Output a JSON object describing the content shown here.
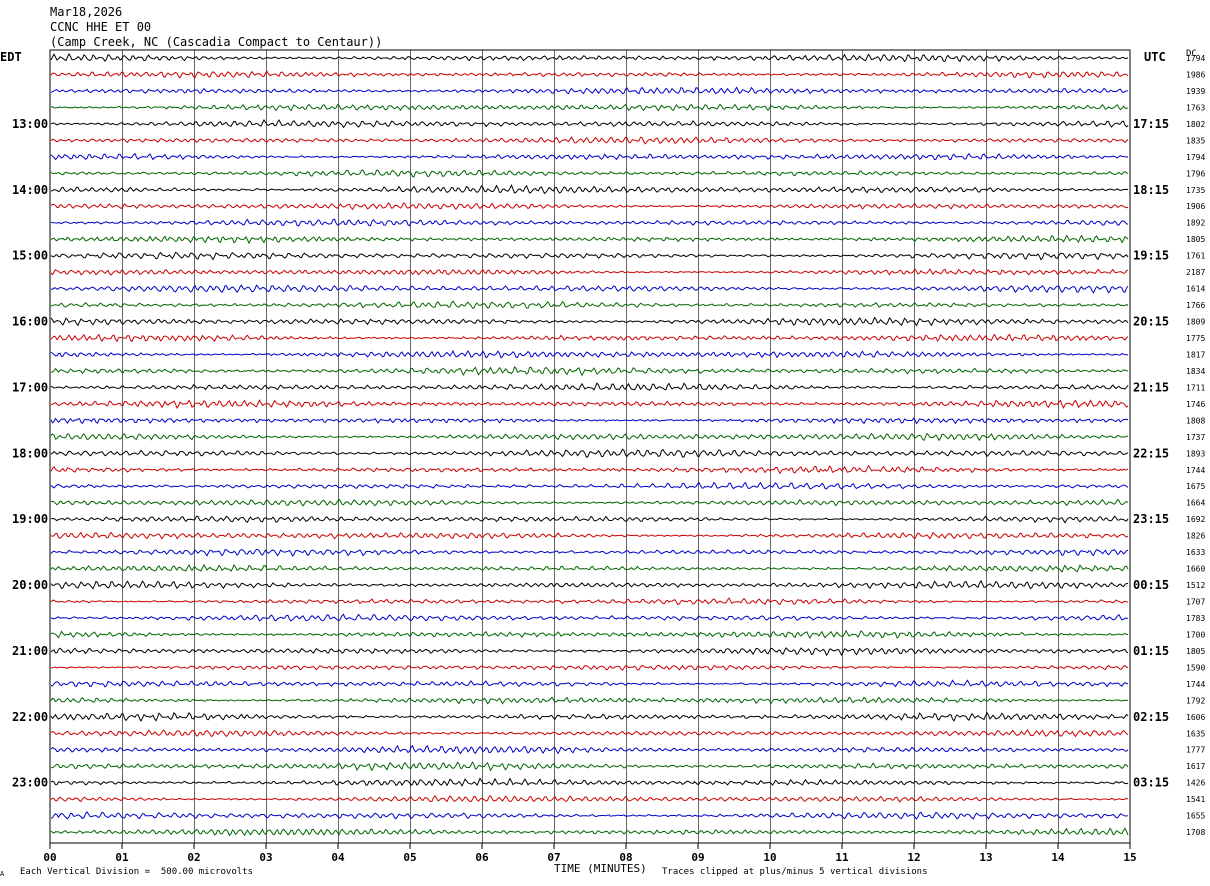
{
  "header": {
    "date": "Mar18,2026",
    "channel": "CCNC HHE ET 00",
    "station": "(Camp Creek, NC (Cascadia Compact to Centaur))"
  },
  "left_axis_label": "EDT",
  "right_axis_label": "UTC",
  "dc_label": "DC",
  "footer": {
    "vertical_division": "Each Vertical Division =  500.00 microvolts",
    "time_label": "TIME (MINUTES)",
    "clip_note": "Traces clipped at plus/minus 5 vertical divisions",
    "corner_mark": "A"
  },
  "colors": {
    "black": "#000000",
    "red": "#cc0000",
    "blue": "#0000cc",
    "green": "#006600",
    "grid": "#000000"
  },
  "chart_data": {
    "type": "line",
    "x_ticks": [
      "00",
      "01",
      "02",
      "03",
      "04",
      "05",
      "06",
      "07",
      "08",
      "09",
      "10",
      "11",
      "12",
      "13",
      "14",
      "15"
    ],
    "xlim": [
      0,
      15
    ],
    "trace_colors": [
      "black",
      "red",
      "blue",
      "green"
    ],
    "left_hour_labels": [
      "13:00",
      "14:00",
      "15:00",
      "16:00",
      "17:00",
      "18:00",
      "19:00",
      "20:00",
      "21:00",
      "22:00",
      "23:00"
    ],
    "right_hour_labels": [
      "17:15",
      "18:15",
      "19:15",
      "20:15",
      "21:15",
      "22:15",
      "23:15",
      "00:15",
      "01:15",
      "02:15",
      "03:15"
    ],
    "dc_values": [
      "1794",
      "1986",
      "1939",
      "1763",
      "1802",
      "1835",
      "1794",
      "1796",
      "1735",
      "1906",
      "1892",
      "1805",
      "1761",
      "2187",
      "1614",
      "1766",
      "1809",
      "1775",
      "1817",
      "1834",
      "1711",
      "1746",
      "1808",
      "1737",
      "1893",
      "1744",
      "1675",
      "1664",
      "1692",
      "1826",
      "1633",
      "1660",
      "1512",
      "1707",
      "1783",
      "1700",
      "1805",
      "1590",
      "1744",
      "1792",
      "1606",
      "1635",
      "1777",
      "1617",
      "1426",
      "1541",
      "1655",
      "1708"
    ]
  }
}
